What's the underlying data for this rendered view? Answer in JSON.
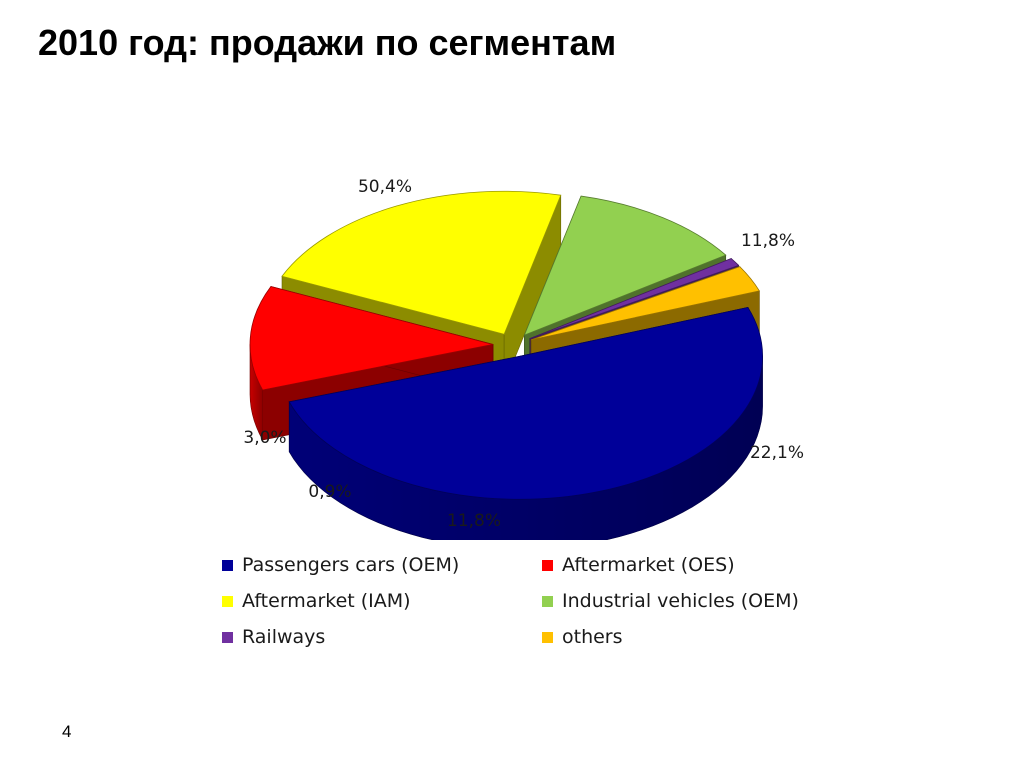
{
  "slide": {
    "title": "2010 год: продажи по сегментам",
    "page_number": "4"
  },
  "chart_data": {
    "type": "pie",
    "style": "3d-exploded",
    "legend_position": "bottom",
    "value_format": "percent-comma-decimal",
    "slices": [
      {
        "label": "Passengers cars (OEM)",
        "value": 50.4,
        "display": "50,4%",
        "color": "#000099"
      },
      {
        "label": "Aftermarket (OES)",
        "value": 11.8,
        "display": "11,8%",
        "color": "#ff0000"
      },
      {
        "label": "Aftermarket (IAM)",
        "value": 22.1,
        "display": "22,1%",
        "color": "#ffff00"
      },
      {
        "label": "Industrial vehicles (OEM)",
        "value": 11.8,
        "display": "11,8%",
        "color": "#92d050"
      },
      {
        "label": "Railways",
        "value": 0.9,
        "display": "0,9%",
        "color": "#7030a0"
      },
      {
        "label": "others",
        "value": 3.0,
        "display": "3,0%",
        "color": "#ffc000"
      }
    ]
  }
}
